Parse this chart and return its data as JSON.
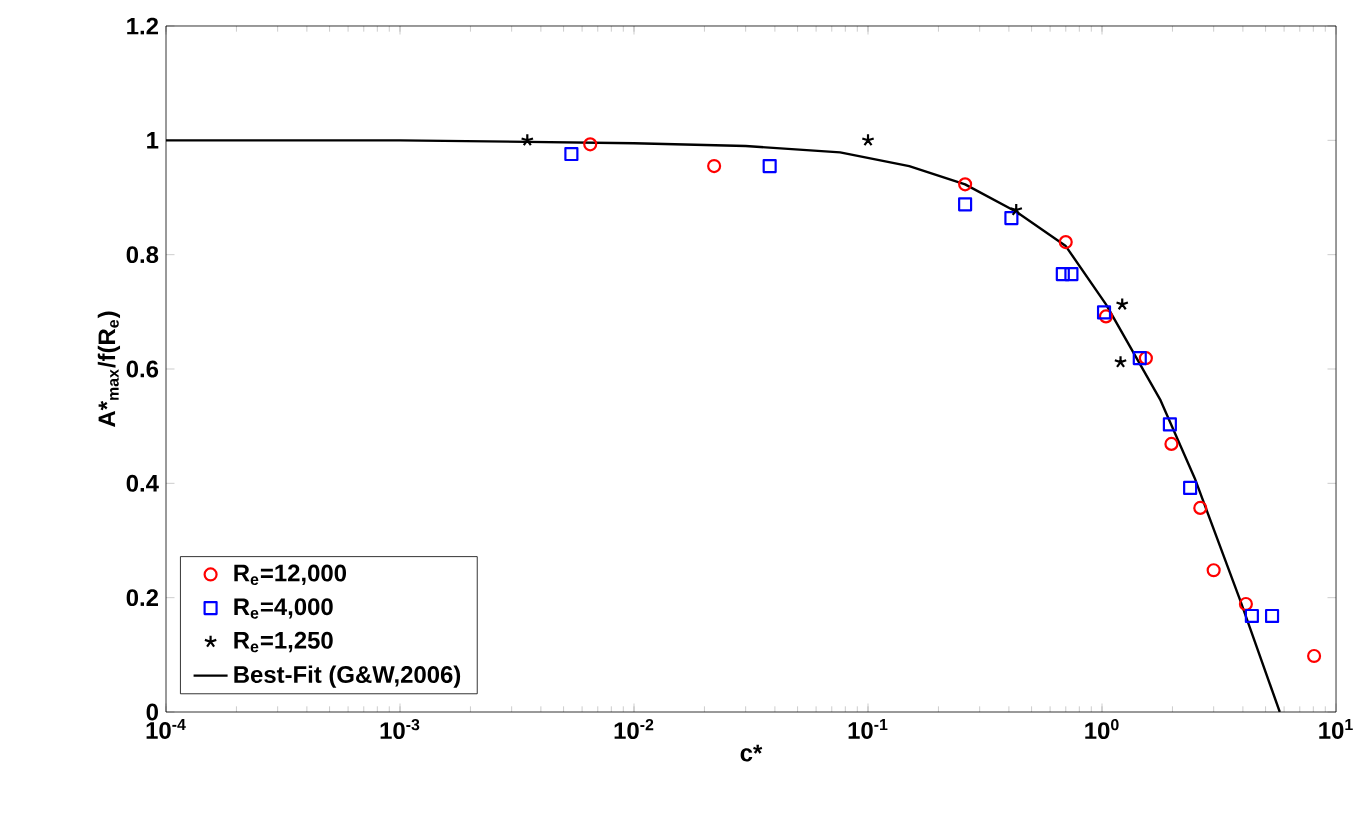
{
  "chart_data": {
    "type": "scatter",
    "xlabel": "c*",
    "ylabel": "A*$_{max}$/f(R$_{e}$)",
    "log": "x",
    "xlim": [
      0.0001,
      10
    ],
    "ylim": [
      0,
      1.2
    ],
    "xticks": [
      {
        "value": 0.0001,
        "label": "10$^{-4}$"
      },
      {
        "value": 0.001,
        "label": "10$^{-3}$"
      },
      {
        "value": 0.01,
        "label": "10$^{-2}$"
      },
      {
        "value": 0.1,
        "label": "10$^{-1}$"
      },
      {
        "value": 1,
        "label": "10$^{0}$"
      },
      {
        "value": 10,
        "label": "10$^{1}$"
      }
    ],
    "yticks": [
      0,
      0.2,
      0.4,
      0.6,
      0.8,
      1,
      1.2
    ],
    "legend": "bottom left",
    "grid": false,
    "series": [
      {
        "name": "R$_{e}$=12,000",
        "color": "#ff0000",
        "marker": "circle",
        "x": [
          0.0065,
          0.022,
          0.26,
          0.7,
          1.04,
          1.54,
          1.98,
          2.63,
          3.0,
          4.12,
          8.06
        ],
        "values": [
          0.993,
          0.955,
          0.923,
          0.822,
          0.692,
          0.619,
          0.469,
          0.357,
          0.248,
          0.189,
          0.098
        ]
      },
      {
        "name": "R$_{e}$=4,000",
        "color": "#0000ff",
        "marker": "square",
        "x": [
          0.0054,
          0.038,
          0.26,
          0.41,
          0.68,
          0.74,
          1.02,
          1.45,
          1.95,
          2.38,
          4.37,
          5.33
        ],
        "values": [
          0.976,
          0.955,
          0.888,
          0.864,
          0.766,
          0.766,
          0.699,
          0.619,
          0.503,
          0.392,
          0.168,
          0.168
        ]
      },
      {
        "name": "R$_{e}$=1,250",
        "color": "#000000",
        "marker": "cross",
        "x": [
          0.0035,
          0.1,
          0.43,
          1.22,
          1.2
        ],
        "values": [
          1.0,
          1.0,
          0.878,
          0.713,
          0.612
        ]
      },
      {
        "name": "Best-Fit (G&W,2006)",
        "color": "#000000",
        "type": "line",
        "marker": "none",
        "line_style": "solid",
        "x": [
          0.0001,
          0.001,
          0.01,
          0.03,
          0.076,
          0.15,
          0.26,
          0.43,
          0.7,
          1.04,
          1.78,
          2.49,
          3.89,
          5.75
        ],
        "values": [
          1.0,
          1.0,
          0.995,
          0.99,
          0.979,
          0.955,
          0.923,
          0.875,
          0.815,
          0.713,
          0.545,
          0.409,
          0.196,
          0.0
        ]
      }
    ]
  }
}
